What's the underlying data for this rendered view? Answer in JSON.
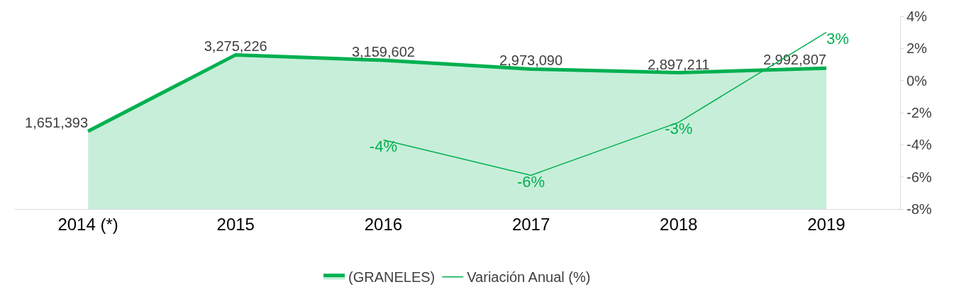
{
  "chart_data": {
    "type": "area",
    "categories": [
      "2014 (*)",
      "2015",
      "2016",
      "2017",
      "2018",
      "2019"
    ],
    "series": [
      {
        "name": "(GRANELES)",
        "color": "#00b050",
        "values": [
          1651393,
          3275226,
          3159602,
          2973090,
          2897211,
          2992807
        ],
        "value_labels": [
          "1,651,393",
          "3,275,226",
          "3,159,602",
          "2,973,090",
          "2,897,211",
          "2,992,807"
        ]
      },
      {
        "name": "Variación Anual (%)",
        "type": "line",
        "axis": "y2",
        "color": "#00b050",
        "values": [
          null,
          null,
          -3.7,
          -5.9,
          -2.6,
          3.0
        ],
        "value_labels": [
          null,
          null,
          "-4%",
          "-6%",
          "-3%",
          "3%"
        ]
      }
    ],
    "y2lim": [
      -8,
      4
    ],
    "y2ticks": [
      {
        "value": 4,
        "label": "4%"
      },
      {
        "value": 2,
        "label": "2%"
      },
      {
        "value": 0,
        "label": "0%"
      },
      {
        "value": -2,
        "label": "-2%"
      },
      {
        "value": -4,
        "label": "-4%"
      },
      {
        "value": -6,
        "label": "-6%"
      },
      {
        "value": -8,
        "label": "-8%"
      }
    ],
    "tick_labels": "x",
    "legend": "bottom"
  }
}
